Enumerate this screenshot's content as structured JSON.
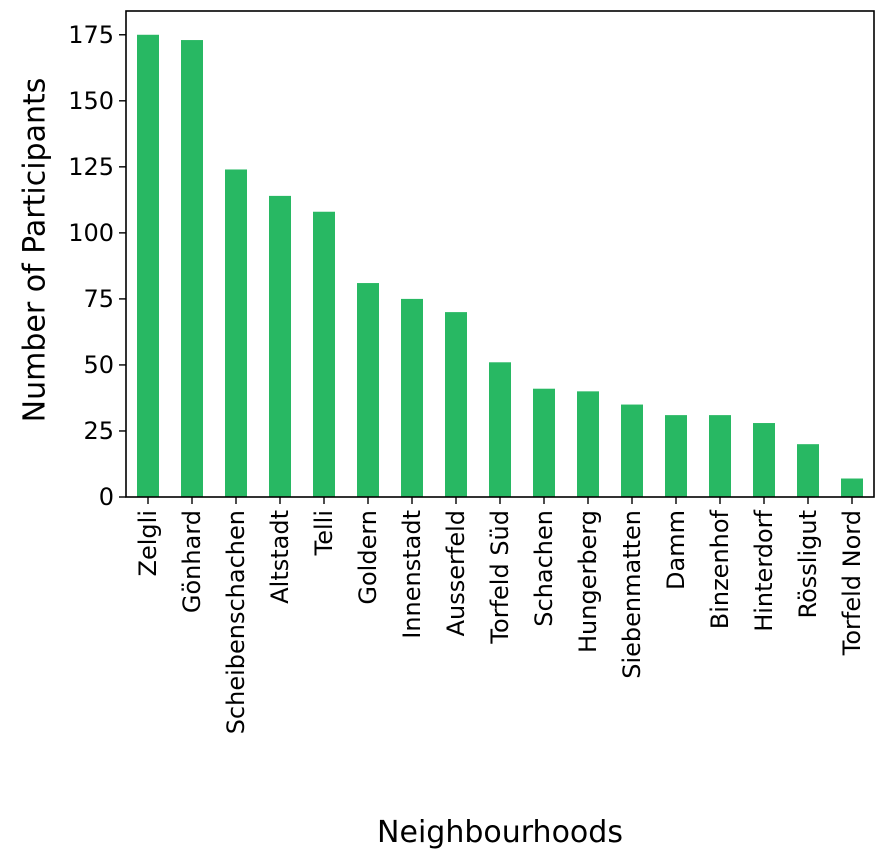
{
  "chart_data": {
    "type": "bar",
    "title": "",
    "xlabel": "Neighbourhoods",
    "ylabel": "Number of Participants",
    "ylim": [
      0,
      184
    ],
    "yticks": [
      0,
      25,
      50,
      75,
      100,
      125,
      150,
      175
    ],
    "grid": false,
    "legend": "none",
    "bar_color": "#28b863",
    "categories": [
      "Zelgli",
      "Gönhard",
      "Scheibenschachen",
      "Altstadt",
      "Telli",
      "Goldern",
      "Innenstadt",
      "Ausserfeld",
      "Torfeld Süd",
      "Schachen",
      "Hungerberg",
      "Siebenmatten",
      "Damm",
      "Binzenhof",
      "Hinterdorf",
      "Rössligut",
      "Torfeld Nord"
    ],
    "values": [
      175,
      173,
      124,
      114,
      108,
      81,
      75,
      70,
      51,
      41,
      40,
      35,
      31,
      31,
      28,
      20,
      7
    ]
  }
}
